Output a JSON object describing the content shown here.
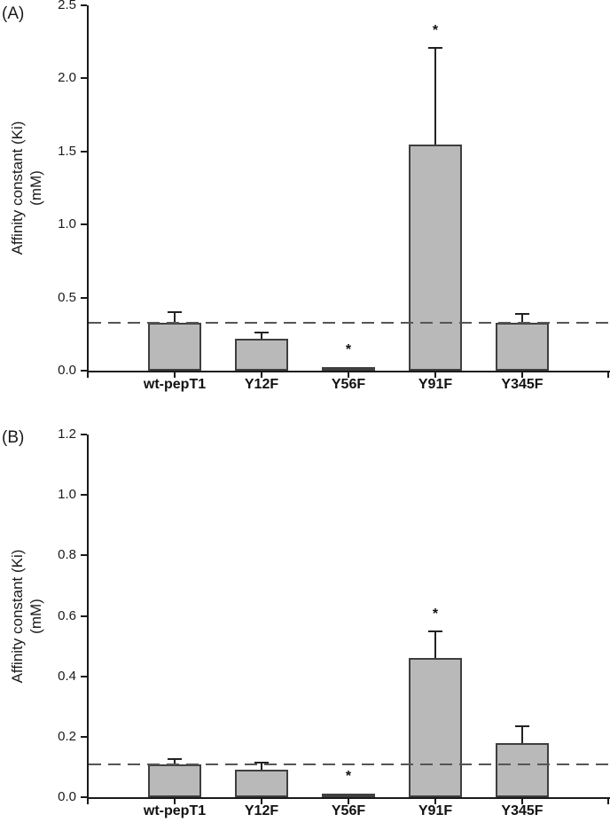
{
  "figure_title": "",
  "colors": {
    "bar_fill": "#b9b9b9",
    "bar_border": "#3f3f3f",
    "axis": "#1a1a1a",
    "dash": "#555555",
    "background": "#ffffff"
  },
  "star_glyph": "*",
  "chart_data": [
    {
      "type": "bar",
      "panel_label": "(A)",
      "title": "",
      "ylabel_line1": "Affinity constant (Ki)",
      "ylabel_line2": "(mM)",
      "xlabel": "",
      "categories": [
        "wt-pepT1",
        "Y12F",
        "Y56F",
        "Y91F",
        "Y345F"
      ],
      "values": [
        0.33,
        0.22,
        0.01,
        1.55,
        0.33
      ],
      "error_tops": [
        0.4,
        0.26,
        null,
        2.21,
        0.39
      ],
      "significant": [
        false,
        false,
        true,
        true,
        false
      ],
      "dashed_reference_line": 0.33,
      "ylim": [
        0,
        2.5
      ],
      "ytick_labels": [
        "0.0",
        "0.5",
        "1.0",
        "1.5",
        "2.0",
        "2.5"
      ],
      "ytick_values": [
        0.0,
        0.5,
        1.0,
        1.5,
        2.0,
        2.5
      ],
      "grid": false,
      "legend": false
    },
    {
      "type": "bar",
      "panel_label": "(B)",
      "title": "",
      "ylabel_line1": "Affinity constant (Ki)",
      "ylabel_line2": "(mM)",
      "xlabel": "",
      "categories": [
        "wt-pepT1",
        "Y12F",
        "Y56F",
        "Y91F",
        "Y345F"
      ],
      "values": [
        0.11,
        0.09,
        0.005,
        0.46,
        0.18
      ],
      "error_tops": [
        0.125,
        0.115,
        null,
        0.55,
        0.235
      ],
      "significant": [
        false,
        false,
        true,
        true,
        false
      ],
      "dashed_reference_line": 0.11,
      "ylim": [
        0,
        1.2
      ],
      "ytick_labels": [
        "0.0",
        "0.2",
        "0.4",
        "0.6",
        "0.8",
        "1.0",
        "1.2"
      ],
      "ytick_values": [
        0.0,
        0.2,
        0.4,
        0.6,
        0.8,
        1.0,
        1.2
      ],
      "grid": false,
      "legend": false
    }
  ]
}
